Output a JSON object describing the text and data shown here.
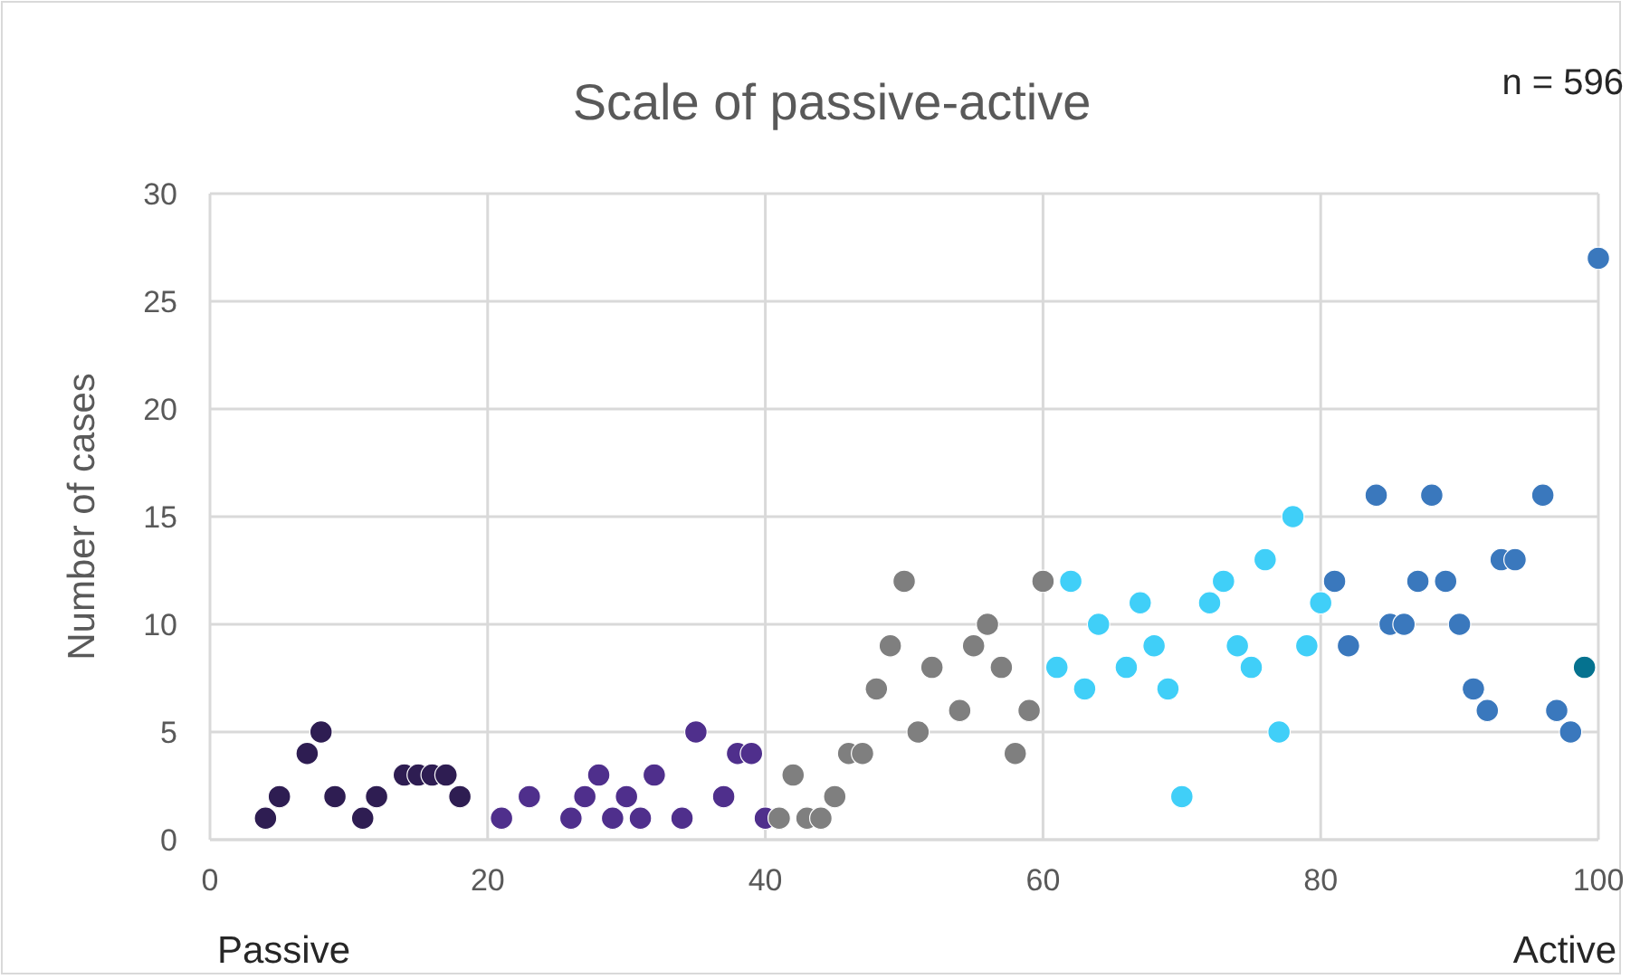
{
  "chart_data": {
    "type": "scatter",
    "title": "Scale of passive-active",
    "ylabel": "Number of cases",
    "annotations": [
      "n = 596",
      "Passive",
      "Active"
    ],
    "xlim": [
      0,
      100
    ],
    "xticks": [
      0,
      20,
      40,
      60,
      80,
      100
    ],
    "ylim": [
      0,
      30
    ],
    "yticks": [
      0,
      5,
      10,
      15,
      20,
      25,
      30
    ],
    "grid": true,
    "marker": "circle",
    "series": [
      {
        "color": "#2e1d52",
        "x": [
          4,
          5,
          7,
          8,
          9,
          11,
          12,
          14,
          15,
          16,
          17,
          18
        ],
        "values": [
          1,
          2,
          4,
          5,
          2,
          1,
          2,
          3,
          3,
          3,
          3,
          2
        ]
      },
      {
        "color": "#4f2f8c",
        "x": [
          21,
          23,
          26,
          27,
          28,
          29,
          30,
          31,
          32,
          34,
          35,
          37,
          38,
          39,
          40
        ],
        "values": [
          1,
          2,
          1,
          2,
          3,
          1,
          2,
          1,
          3,
          1,
          5,
          2,
          4,
          4,
          1
        ]
      },
      {
        "color": "#7f7f7f",
        "x": [
          41,
          42,
          43,
          44,
          45,
          46,
          47,
          48,
          49,
          50,
          51,
          52,
          54,
          55,
          56,
          57,
          58,
          59,
          60
        ],
        "values": [
          1,
          3,
          1,
          1,
          2,
          4,
          4,
          7,
          9,
          12,
          5,
          8,
          6,
          9,
          10,
          8,
          4,
          6,
          12
        ]
      },
      {
        "color": "#40cff8",
        "x": [
          61,
          62,
          63,
          64,
          66,
          67,
          68,
          69,
          70,
          72,
          73,
          74,
          75,
          76,
          77,
          78,
          79,
          80
        ],
        "values": [
          8,
          12,
          7,
          10,
          8,
          11,
          9,
          7,
          2,
          11,
          12,
          9,
          8,
          13,
          5,
          15,
          9,
          11
        ]
      },
      {
        "color": "#3a78bd",
        "x": [
          81,
          82,
          84,
          85,
          86,
          87,
          88,
          89,
          90,
          91,
          92,
          93,
          94,
          96,
          97,
          98,
          100
        ],
        "values": [
          12,
          9,
          16,
          10,
          10,
          12,
          16,
          12,
          10,
          7,
          6,
          13,
          13,
          16,
          6,
          5,
          27
        ]
      },
      {
        "color": "#05728f",
        "x": [
          99
        ],
        "values": [
          8
        ]
      }
    ]
  }
}
